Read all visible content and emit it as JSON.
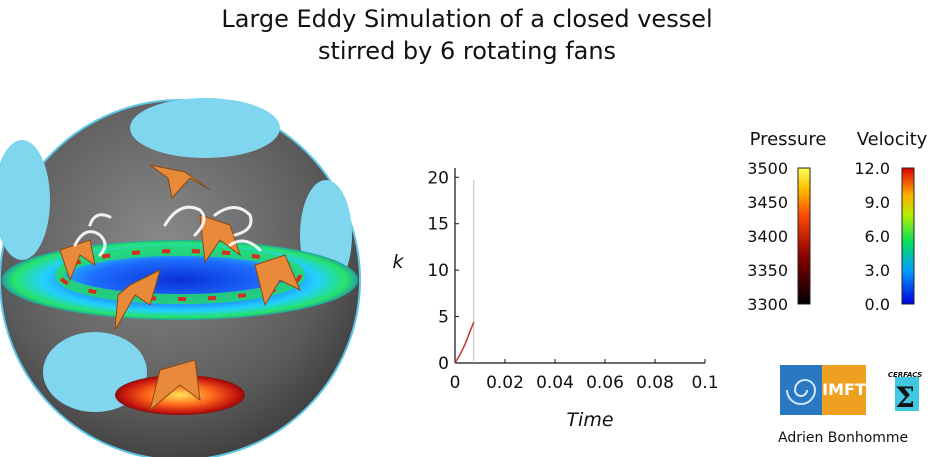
{
  "title": {
    "line1": "Large Eddy Simulation of a closed vessel",
    "line2": "stirred by 6 rotating fans"
  },
  "chart_data": {
    "type": "line",
    "xlabel": "Time",
    "ylabel": "k",
    "xlim": [
      0,
      0.1
    ],
    "ylim": [
      0,
      21
    ],
    "x_ticks": [
      "0",
      "0.02",
      "0.04",
      "0.06",
      "0.08",
      "0.1"
    ],
    "y_ticks": [
      "0",
      "5",
      "10",
      "15",
      "20"
    ],
    "series": [
      {
        "color": "#c0392b",
        "x": [
          0,
          0.002,
          0.004,
          0.006,
          0.0075
        ],
        "y": [
          0,
          0.9,
          2.0,
          3.4,
          4.4
        ]
      }
    ],
    "current_time_marker": 0.0075
  },
  "legends": {
    "pressure": {
      "title": "Pressure",
      "ticks": [
        "3500",
        "3450",
        "3400",
        "3350",
        "3300"
      ]
    },
    "velocity": {
      "title": "Velocity",
      "ticks": [
        "12.0",
        "9.0",
        "6.0",
        "3.0",
        "0.0"
      ]
    }
  },
  "logos": {
    "imft": "IMFT",
    "cerfacs": "CERFACS"
  },
  "author": "Adrien Bonhomme"
}
